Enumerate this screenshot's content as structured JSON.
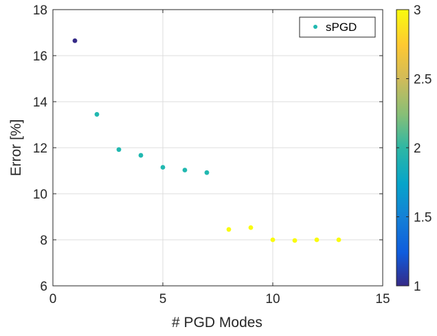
{
  "chart_data": {
    "type": "scatter",
    "xlabel": "# PGD Modes",
    "ylabel": "Error [%]",
    "xlim": [
      0,
      15
    ],
    "ylim": [
      6,
      18
    ],
    "xticks": [
      "0",
      "5",
      "10",
      "15"
    ],
    "yticks": [
      "6",
      "8",
      "10",
      "12",
      "14",
      "16",
      "18"
    ],
    "grid": true,
    "legend": {
      "placement": "top-right",
      "entries": [
        "sPGD"
      ]
    },
    "colorbar": {
      "range": [
        1,
        3
      ],
      "ticks": [
        "1",
        "1.5",
        "2",
        "2.5",
        "3"
      ],
      "colormap": "parula"
    },
    "series": [
      {
        "name": "sPGD",
        "x": [
          1,
          2,
          3,
          4,
          5,
          6,
          7,
          8,
          9,
          10,
          11,
          12,
          13
        ],
        "y": [
          16.65,
          13.45,
          11.92,
          11.67,
          11.15,
          11.03,
          10.92,
          8.45,
          8.53,
          8.0,
          7.97,
          8.0,
          8.0
        ],
        "c": [
          1,
          2,
          2,
          2,
          2,
          2,
          2,
          3,
          3,
          3,
          3,
          3,
          3
        ]
      }
    ],
    "colors": {
      "c1": "#352a87",
      "c2": "#21b8b0",
      "c3": "#f9fb0e",
      "legend_marker": "#21b8b0"
    }
  }
}
